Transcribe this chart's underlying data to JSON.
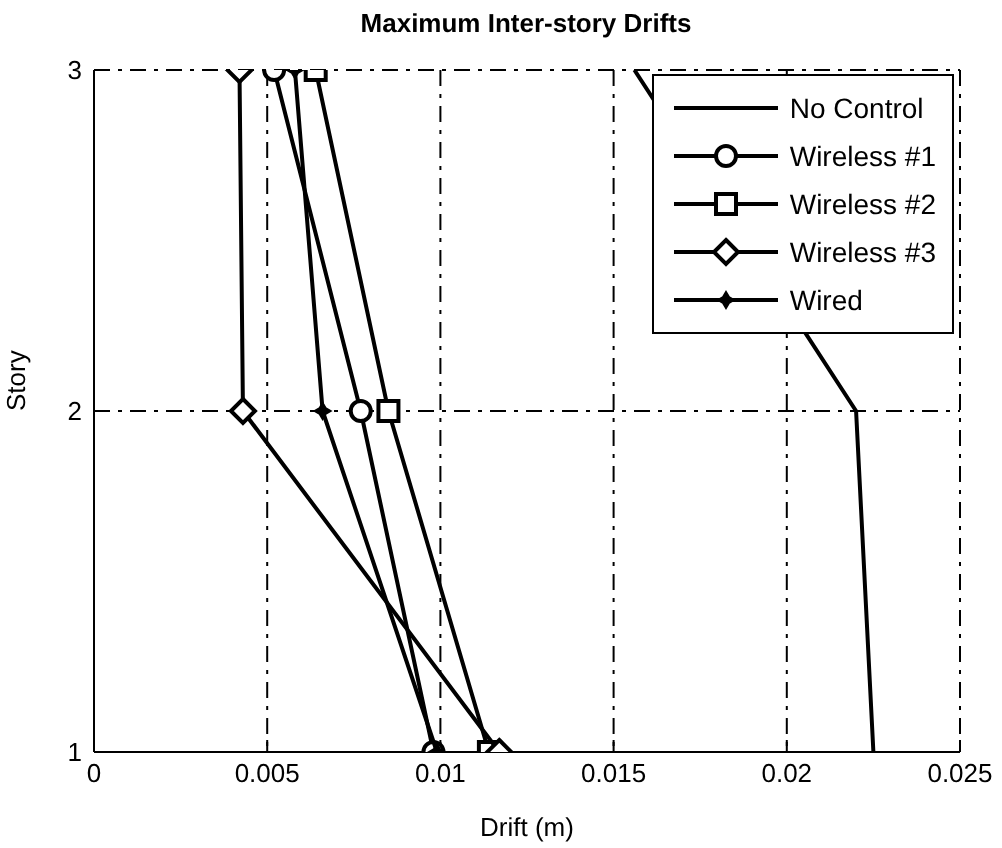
{
  "chart_data": {
    "type": "line",
    "orientation": "horizontal",
    "title": "Maximum Inter-story Drifts",
    "xlabel": "Drift (m)",
    "ylabel": "Story",
    "categories": [
      "3",
      "2",
      "1"
    ],
    "series": [
      {
        "name": "No Control",
        "color": "#000000",
        "marker": "none",
        "values": [
          0.0156,
          0.022,
          0.0225
        ]
      },
      {
        "name": "Wireless #1",
        "color": "#000000",
        "marker": "circle",
        "values": [
          0.0052,
          0.0077,
          0.0098
        ]
      },
      {
        "name": "Wireless #2",
        "color": "#000000",
        "marker": "square",
        "values": [
          0.0064,
          0.0085,
          0.0114
        ]
      },
      {
        "name": "Wireless #3",
        "color": "#000000",
        "marker": "diamond",
        "values": [
          0.0042,
          0.0043,
          0.0117
        ]
      },
      {
        "name": "Wired",
        "color": "#000000",
        "marker": "star",
        "values": [
          0.0058,
          0.0066,
          0.0099
        ]
      }
    ],
    "xlim": [
      0,
      0.025
    ],
    "xticks": [
      0,
      0.005,
      0.01,
      0.015,
      0.02,
      0.025
    ],
    "grid": true,
    "legend": "top right",
    "line_style": "solid"
  }
}
